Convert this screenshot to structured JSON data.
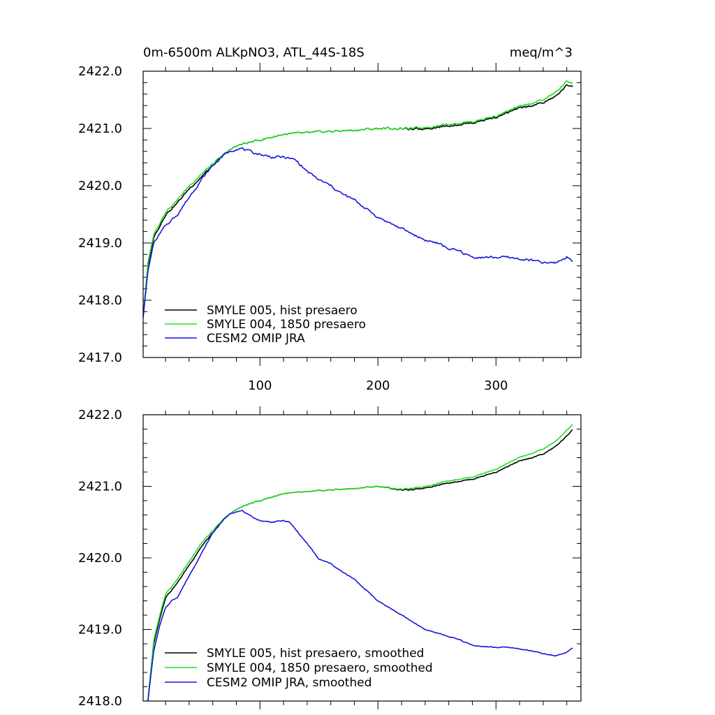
{
  "chart_data": [
    {
      "type": "line",
      "title": "0m-6500m ALKpNO3, ATL_44S-18S",
      "units": "meq/m^3",
      "xlim": [
        1,
        372
      ],
      "ylim": [
        2417.0,
        2422.0
      ],
      "x_ticks": [
        100,
        200,
        300
      ],
      "x_tick_labels": [
        "100",
        "200",
        "300"
      ],
      "y_ticks": [
        2417.0,
        2418.0,
        2419.0,
        2420.0,
        2421.0,
        2422.0
      ],
      "y_tick_labels": [
        "2417.0",
        "2418.0",
        "2419.0",
        "2420.0",
        "2421.0",
        "2422.0"
      ],
      "legend_position": "bottom-left",
      "series": [
        {
          "name": "SMYLE 005, hist presaero",
          "color": "#000000",
          "x": [
            1,
            5,
            10,
            15,
            20,
            25,
            30,
            40,
            50,
            60,
            70,
            80,
            90,
            100,
            110,
            120,
            140,
            160,
            180,
            200,
            220,
            230,
            240,
            260,
            280,
            300,
            320,
            340,
            350,
            360,
            365
          ],
          "y": [
            2417.7,
            2418.6,
            2419.1,
            2419.3,
            2419.5,
            2419.6,
            2419.7,
            2419.95,
            2420.15,
            2420.35,
            2420.55,
            2420.7,
            2420.75,
            2420.8,
            2420.85,
            2420.9,
            2420.92,
            2420.95,
            2420.97,
            2421.0,
            2421.0,
            2420.98,
            2421.0,
            2421.05,
            2421.1,
            2421.2,
            2421.35,
            2421.45,
            2421.55,
            2421.75,
            2421.75
          ],
          "wiggle": 0.035
        },
        {
          "name": "SMYLE 004, 1850 presaero",
          "color": "#22dd22",
          "x": [
            1,
            5,
            10,
            15,
            20,
            25,
            30,
            40,
            50,
            60,
            70,
            80,
            90,
            100,
            110,
            120,
            140,
            160,
            180,
            200,
            220,
            230,
            240,
            260,
            280,
            300,
            320,
            340,
            350,
            360,
            365
          ],
          "y": [
            2417.7,
            2418.65,
            2419.15,
            2419.35,
            2419.55,
            2419.65,
            2419.75,
            2420.0,
            2420.2,
            2420.38,
            2420.55,
            2420.7,
            2420.75,
            2420.8,
            2420.85,
            2420.9,
            2420.92,
            2420.95,
            2420.97,
            2421.0,
            2421.0,
            2421.0,
            2421.02,
            2421.08,
            2421.12,
            2421.22,
            2421.38,
            2421.5,
            2421.62,
            2421.82,
            2421.8
          ],
          "wiggle": 0.035
        },
        {
          "name": "CESM2 OMIP JRA",
          "color": "#1515dd",
          "x": [
            1,
            5,
            10,
            15,
            20,
            25,
            30,
            40,
            50,
            60,
            70,
            80,
            85,
            90,
            100,
            110,
            120,
            130,
            140,
            150,
            160,
            170,
            180,
            190,
            200,
            210,
            220,
            230,
            240,
            250,
            260,
            270,
            280,
            290,
            300,
            310,
            320,
            330,
            340,
            350,
            360,
            365
          ],
          "y": [
            2417.7,
            2418.5,
            2419.0,
            2419.15,
            2419.3,
            2419.4,
            2419.5,
            2419.8,
            2420.1,
            2420.35,
            2420.55,
            2420.65,
            2420.65,
            2420.6,
            2420.55,
            2420.5,
            2420.5,
            2420.45,
            2420.25,
            2420.1,
            2420.0,
            2419.85,
            2419.75,
            2419.6,
            2419.45,
            2419.35,
            2419.25,
            2419.15,
            2419.05,
            2419.0,
            2418.9,
            2418.85,
            2418.75,
            2418.75,
            2418.75,
            2418.75,
            2418.72,
            2418.7,
            2418.65,
            2418.65,
            2418.75,
            2418.7
          ],
          "wiggle": 0.04
        }
      ]
    },
    {
      "type": "line",
      "title": "",
      "xlim": [
        1,
        372
      ],
      "ylim": [
        2418.0,
        2422.0
      ],
      "x_ticks": [
        100,
        200,
        300
      ],
      "y_ticks": [
        2418.0,
        2419.0,
        2420.0,
        2421.0,
        2422.0
      ],
      "y_tick_labels": [
        "2418.0",
        "2419.0",
        "2420.0",
        "2421.0",
        "2422.0"
      ],
      "legend_position": "bottom-left",
      "series": [
        {
          "name": "SMYLE 005, hist presaero, smoothed",
          "color": "#000000",
          "x": [
            5,
            10,
            15,
            20,
            25,
            30,
            40,
            50,
            60,
            70,
            80,
            90,
            100,
            110,
            120,
            140,
            160,
            180,
            200,
            220,
            230,
            240,
            260,
            280,
            300,
            320,
            340,
            350,
            360,
            365
          ],
          "y": [
            2418.0,
            2418.8,
            2419.15,
            2419.45,
            2419.55,
            2419.65,
            2419.9,
            2420.15,
            2420.35,
            2420.55,
            2420.68,
            2420.75,
            2420.8,
            2420.85,
            2420.9,
            2420.92,
            2420.95,
            2420.97,
            2421.0,
            2420.95,
            2420.95,
            2420.98,
            2421.05,
            2421.1,
            2421.2,
            2421.35,
            2421.45,
            2421.55,
            2421.7,
            2421.8
          ],
          "wiggle": 0.015
        },
        {
          "name": "SMYLE 004, 1850 presaero, smoothed",
          "color": "#22dd22",
          "x": [
            5,
            10,
            15,
            20,
            25,
            30,
            40,
            50,
            60,
            70,
            80,
            90,
            100,
            110,
            120,
            140,
            160,
            180,
            200,
            220,
            230,
            240,
            260,
            280,
            300,
            320,
            340,
            350,
            360,
            365
          ],
          "y": [
            2418.0,
            2418.85,
            2419.2,
            2419.5,
            2419.6,
            2419.7,
            2419.95,
            2420.2,
            2420.38,
            2420.55,
            2420.68,
            2420.75,
            2420.8,
            2420.85,
            2420.9,
            2420.92,
            2420.95,
            2420.97,
            2421.0,
            2420.96,
            2420.97,
            2421.0,
            2421.08,
            2421.13,
            2421.24,
            2421.4,
            2421.52,
            2421.62,
            2421.78,
            2421.87
          ],
          "wiggle": 0.015
        },
        {
          "name": "CESM2 OMIP JRA, smoothed",
          "color": "#1515dd",
          "x": [
            5,
            10,
            15,
            20,
            25,
            30,
            40,
            50,
            60,
            70,
            75,
            80,
            85,
            90,
            100,
            110,
            120,
            125,
            130,
            140,
            150,
            160,
            170,
            180,
            190,
            200,
            210,
            220,
            230,
            240,
            250,
            260,
            270,
            280,
            290,
            300,
            310,
            320,
            330,
            340,
            350,
            360,
            365
          ],
          "y": [
            2418.0,
            2418.7,
            2419.05,
            2419.3,
            2419.4,
            2419.45,
            2419.75,
            2420.05,
            2420.35,
            2420.55,
            2420.62,
            2420.65,
            2420.66,
            2420.6,
            2420.52,
            2420.5,
            2420.52,
            2420.5,
            2420.4,
            2420.2,
            2419.98,
            2419.92,
            2419.8,
            2419.7,
            2419.55,
            2419.4,
            2419.3,
            2419.2,
            2419.1,
            2419.0,
            2418.95,
            2418.9,
            2418.85,
            2418.78,
            2418.76,
            2418.75,
            2418.75,
            2418.73,
            2418.7,
            2418.66,
            2418.63,
            2418.68,
            2418.75
          ],
          "wiggle": 0.012
        }
      ]
    }
  ]
}
